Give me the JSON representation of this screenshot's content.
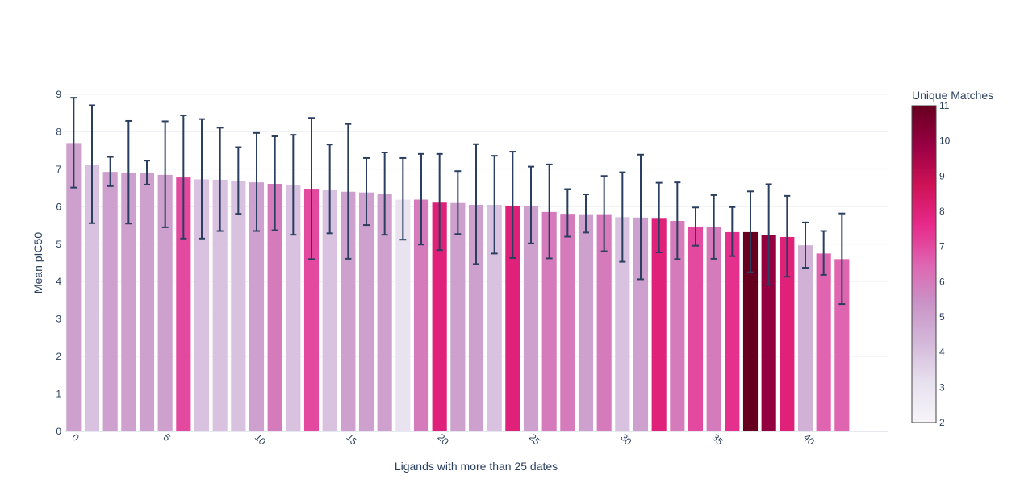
{
  "chart_data": {
    "type": "bar",
    "xlabel": "Ligands with more than 25 dates",
    "ylabel": "Mean pIC50",
    "ylim": [
      0,
      9
    ],
    "xlim": [
      -0.5,
      44.5
    ],
    "grid": true,
    "x_ticks": [
      0,
      5,
      10,
      15,
      20,
      25,
      30,
      35,
      40
    ],
    "y_ticks": [
      0,
      1,
      2,
      3,
      4,
      5,
      6,
      7,
      8,
      9
    ],
    "colorbar": {
      "title": "Unique Matches",
      "range": [
        2,
        11
      ],
      "ticks": [
        2,
        3,
        4,
        5,
        6,
        7,
        8,
        9,
        10,
        11
      ],
      "colorscale": [
        "#f7f4f9",
        "#e7e1ef",
        "#d4b9da",
        "#c994c7",
        "#df65b0",
        "#e7298a",
        "#ce1256",
        "#980043",
        "#67001f"
      ]
    },
    "x": [
      0,
      1,
      2,
      3,
      4,
      5,
      6,
      7,
      8,
      9,
      10,
      11,
      12,
      13,
      14,
      15,
      16,
      17,
      18,
      19,
      20,
      21,
      22,
      23,
      24,
      25,
      26,
      27,
      28,
      29,
      30,
      31,
      32,
      33,
      34,
      35,
      36,
      37,
      38,
      39,
      40,
      41,
      42
    ],
    "values": [
      7.7,
      7.11,
      6.93,
      6.9,
      6.9,
      6.85,
      6.78,
      6.73,
      6.72,
      6.69,
      6.65,
      6.61,
      6.57,
      6.48,
      6.46,
      6.4,
      6.38,
      6.34,
      6.19,
      6.19,
      6.11,
      6.1,
      6.05,
      6.05,
      6.03,
      6.03,
      5.86,
      5.81,
      5.8,
      5.8,
      5.72,
      5.71,
      5.7,
      5.62,
      5.47,
      5.45,
      5.32,
      5.32,
      5.25,
      5.19,
      4.97,
      4.75,
      4.6
    ],
    "error_upper": [
      8.91,
      8.71,
      7.33,
      8.29,
      7.23,
      8.28,
      8.44,
      8.34,
      8.11,
      7.59,
      7.97,
      7.88,
      7.92,
      8.37,
      7.66,
      8.21,
      7.3,
      7.45,
      7.3,
      7.41,
      7.41,
      6.95,
      7.67,
      7.36,
      7.47,
      7.07,
      7.13,
      6.47,
      6.33,
      6.82,
      6.92,
      7.39,
      6.64,
      6.65,
      5.98,
      6.31,
      5.99,
      6.41,
      6.6,
      6.29,
      5.58,
      5.35,
      5.82
    ],
    "error_lower": [
      6.51,
      5.56,
      6.55,
      5.55,
      6.59,
      5.45,
      5.15,
      5.15,
      5.35,
      5.81,
      5.35,
      5.37,
      5.25,
      4.6,
      5.29,
      4.61,
      5.51,
      5.25,
      5.12,
      4.99,
      4.84,
      5.27,
      4.47,
      4.75,
      4.63,
      5.02,
      4.62,
      5.2,
      5.31,
      4.81,
      4.53,
      4.06,
      4.78,
      4.6,
      4.96,
      4.61,
      4.68,
      4.25,
      3.91,
      4.13,
      4.37,
      4.18,
      3.4
    ],
    "unique_matches": [
      5,
      4,
      5,
      5,
      5,
      5,
      7,
      4,
      4,
      4,
      5,
      6,
      4,
      7,
      4,
      5,
      5,
      5,
      3,
      6,
      8,
      5,
      5,
      4,
      8,
      5,
      6,
      6,
      5,
      6,
      4,
      5,
      8,
      6,
      7,
      6,
      7.5,
      11,
      10,
      8,
      4.5,
      6.5,
      6.5
    ]
  }
}
